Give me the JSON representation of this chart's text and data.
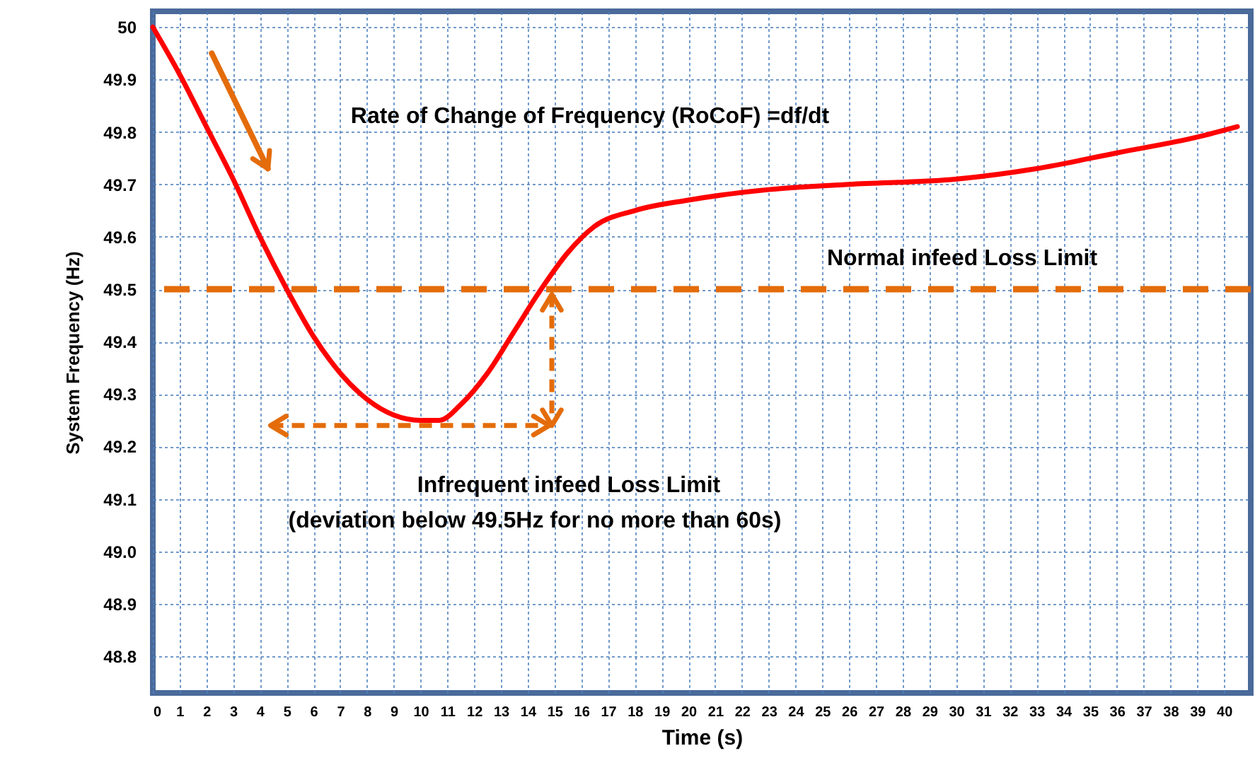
{
  "chart_data": {
    "type": "line",
    "xlabel": "Time (s)",
    "ylabel": "System Frequency (Hz)",
    "xlim": [
      0,
      41
    ],
    "xticks": [
      0,
      1,
      2,
      3,
      4,
      5,
      6,
      7,
      8,
      9,
      10,
      11,
      12,
      13,
      14,
      15,
      16,
      17,
      18,
      19,
      20,
      21,
      22,
      23,
      24,
      25,
      26,
      27,
      28,
      29,
      30,
      31,
      32,
      33,
      34,
      35,
      36,
      37,
      38,
      39,
      40
    ],
    "ylim": [
      48.73,
      50.03
    ],
    "yticks": [
      48.8,
      48.9,
      {
        "value": 49,
        "label": "49.0"
      },
      49.1,
      49.2,
      49.3,
      49.4,
      49.5,
      49.6,
      49.7,
      49.8,
      49.9,
      50
    ],
    "grid": true,
    "line_style": "solid",
    "x": [
      0,
      1,
      2,
      3,
      4,
      5,
      6,
      7,
      8,
      9,
      10,
      10.7,
      11.5,
      12.5,
      13.5,
      14.5,
      15.5,
      16.5,
      18,
      20,
      23,
      26,
      30,
      33,
      36,
      39,
      40.5
    ],
    "series": [
      {
        "color": "#ff0000",
        "values": [
          50,
          49.91,
          49.81,
          49.71,
          49.6,
          49.5,
          49.41,
          49.34,
          49.29,
          49.26,
          49.25,
          49.25,
          49.28,
          49.34,
          49.42,
          49.5,
          49.57,
          49.62,
          49.65,
          49.67,
          49.69,
          49.7,
          49.71,
          49.73,
          49.76,
          49.79,
          49.81
        ]
      }
    ],
    "ref_lines": [
      {
        "axis": "y",
        "value": 49.5,
        "label": "Normal infeed Loss Limit",
        "color": "#e46c0a",
        "line_style": "dashed"
      }
    ],
    "annotations": [
      "Rate of Change of Frequency (RoCoF) =df/dt",
      "Infrequent infeed Loss Limit",
      "(deviation below 49.5Hz for no more than 60s)"
    ]
  }
}
